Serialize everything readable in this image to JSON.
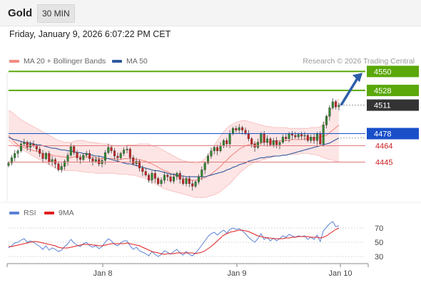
{
  "header": {
    "instrument": "Gold",
    "timeframe": "30 MIN"
  },
  "timestamp": "Friday, January 9, 2026 6:07:22 PM CET",
  "credit": "Research © 2026 Trading Central",
  "legend": {
    "main": [
      {
        "label": "MA 20 + Bollinger Bands",
        "color": "#f28b82"
      },
      {
        "label": "MA 50",
        "color": "#2f5a9e"
      }
    ],
    "rsi": [
      {
        "label": "RSI",
        "color": "#5b82d6"
      },
      {
        "label": "9MA",
        "color": "#e01f1f"
      }
    ]
  },
  "colors": {
    "resistance": "#5aa80a",
    "support": "#cc2222",
    "pivot": "#1a4fc9",
    "price_tag": "#333333",
    "arrow": "#2e5ea8",
    "candle_up": "#2e8b2e",
    "candle_down": "#cc2222",
    "band_fill": "#fde0e0"
  },
  "chart_data": [
    {
      "type": "candlestick",
      "title": "",
      "x_ticks": [
        "Jan 8",
        "Jan 9",
        "Jan 10"
      ],
      "ylim": [
        4400,
        4575
      ],
      "levels": [
        {
          "value": 4550,
          "label": "4550",
          "kind": "resistance"
        },
        {
          "value": 4528,
          "label": "4528",
          "kind": "resistance"
        },
        {
          "value": 4511,
          "label": "4511",
          "kind": "last"
        },
        {
          "value": 4478,
          "label": "4478",
          "kind": "pivot"
        },
        {
          "value": 4464,
          "label": "4464",
          "kind": "support"
        },
        {
          "value": 4445,
          "label": "4445",
          "kind": "support"
        }
      ],
      "close": [
        4444,
        4450,
        4455,
        4458,
        4466,
        4468,
        4462,
        4466,
        4464,
        4460,
        4455,
        4449,
        4455,
        4445,
        4448,
        4443,
        4436,
        4440,
        4446,
        4453,
        4463,
        4456,
        4450,
        4448,
        4453,
        4455,
        4449,
        4446,
        4448,
        4443,
        4447,
        4456,
        4462,
        4458,
        4452,
        4450,
        4455,
        4459,
        4460,
        4450,
        4443,
        4446,
        4438,
        4434,
        4430,
        4424,
        4432,
        4426,
        4420,
        4424,
        4430,
        4428,
        4423,
        4428,
        4432,
        4425,
        4420,
        4426,
        4420,
        4417,
        4422,
        4428,
        4436,
        4444,
        4452,
        4458,
        4462,
        4458,
        4464,
        4470,
        4466,
        4478,
        4484,
        4482,
        4485,
        4482,
        4478,
        4472,
        4466,
        4462,
        4468,
        4478,
        4468,
        4472,
        4465,
        4470,
        4465,
        4468,
        4474,
        4472,
        4478,
        4476,
        4474,
        4477,
        4475,
        4476,
        4470,
        4474,
        4470,
        4478,
        4466,
        4488,
        4498,
        4508,
        4515,
        4509,
        4511
      ],
      "ma20": [
        4476,
        4472,
        4468,
        4465,
        4462,
        4462,
        4460,
        4460,
        4458,
        4458,
        4456,
        4455,
        4454,
        4454,
        4453,
        4452,
        4452,
        4451,
        4451,
        4450,
        4450,
        4451,
        4451,
        4451,
        4451,
        4451,
        4451,
        4451,
        4450,
        4449,
        4449,
        4449,
        4449,
        4449,
        4449,
        4448,
        4448,
        4449,
        4449,
        4449,
        4449,
        4448,
        4448,
        4447,
        4446,
        4444,
        4443,
        4441,
        4439,
        4437,
        4435,
        4434,
        4432,
        4430,
        4429,
        4427,
        4426,
        4425,
        4424,
        4424,
        4424,
        4425,
        4426,
        4427,
        4429,
        4431,
        4434,
        4437,
        4440,
        4444,
        4447,
        4451,
        4454,
        4457,
        4460,
        4462,
        4464,
        4465,
        4466,
        4466,
        4467,
        4467,
        4468,
        4468,
        4468,
        4469,
        4469,
        4470,
        4470,
        4470,
        4470,
        4471,
        4471,
        4471,
        4471,
        4472,
        4472,
        4473,
        4473,
        4473,
        4474,
        4475,
        4476,
        4479,
        4482,
        4485,
        4488
      ],
      "bb_upper": [
        4505,
        4503,
        4500,
        4497,
        4494,
        4492,
        4490,
        4488,
        4486,
        4484,
        4482,
        4480,
        4478,
        4476,
        4474,
        4472,
        4470,
        4469,
        4468,
        4468,
        4468,
        4469,
        4470,
        4470,
        4470,
        4469,
        4468,
        4468,
        4467,
        4467,
        4466,
        4466,
        4466,
        4465,
        4464,
        4464,
        4464,
        4464,
        4465,
        4465,
        4465,
        4465,
        4466,
        4466,
        4466,
        4466,
        4464,
        4463,
        4462,
        4460,
        4458,
        4456,
        4454,
        4452,
        4450,
        4448,
        4447,
        4446,
        4445,
        4444,
        4443,
        4444,
        4446,
        4449,
        4453,
        4458,
        4464,
        4470,
        4475,
        4480,
        4484,
        4487,
        4489,
        4491,
        4492,
        4493,
        4493,
        4492,
        4491,
        4490,
        4489,
        4488,
        4487,
        4486,
        4486,
        4485,
        4485,
        4485,
        4485,
        4485,
        4484,
        4484,
        4484,
        4484,
        4484,
        4484,
        4484,
        4485,
        4485,
        4485,
        4486,
        4489,
        4495,
        4502,
        4510,
        4516,
        4518
      ],
      "bb_lower": [
        4470,
        4467,
        4464,
        4462,
        4460,
        4458,
        4456,
        4454,
        4452,
        4450,
        4448,
        4446,
        4444,
        4442,
        4440,
        4438,
        4437,
        4436,
        4435,
        4435,
        4435,
        4435,
        4435,
        4434,
        4434,
        4433,
        4433,
        4433,
        4432,
        4432,
        4432,
        4432,
        4432,
        4432,
        4432,
        4431,
        4431,
        4431,
        4431,
        4430,
        4430,
        4429,
        4428,
        4427,
        4426,
        4424,
        4422,
        4420,
        4418,
        4416,
        4414,
        4413,
        4412,
        4411,
        4410,
        4409,
        4408,
        4407,
        4406,
        4405,
        4404,
        4404,
        4404,
        4404,
        4405,
        4406,
        4407,
        4409,
        4411,
        4414,
        4417,
        4420,
        4424,
        4428,
        4432,
        4435,
        4438,
        4441,
        4443,
        4445,
        4446,
        4447,
        4448,
        4449,
        4450,
        4451,
        4452,
        4452,
        4453,
        4453,
        4454,
        4454,
        4454,
        4454,
        4455,
        4455,
        4455,
        4454,
        4454,
        4453,
        4452,
        4450,
        4449,
        4448,
        4447,
        4446,
        4446
      ],
      "ma50": [
        4474,
        4472,
        4471,
        4470,
        4469,
        4468,
        4467,
        4467,
        4466,
        4465,
        4465,
        4464,
        4463,
        4462,
        4461,
        4461,
        4460,
        4459,
        4459,
        4458,
        4458,
        4457,
        4456,
        4456,
        4455,
        4455,
        4454,
        4453,
        4452,
        4452,
        4451,
        4450,
        4449,
        4448,
        4447,
        4446,
        4445,
        4444,
        4443,
        4443,
        4442,
        4441,
        4440,
        4439,
        4438,
        4437,
        4436,
        4435,
        4435,
        4434,
        4433,
        4432,
        4431,
        4431,
        4430,
        4429,
        4429,
        4428,
        4428,
        4428,
        4428,
        4428,
        4428,
        4428,
        4429,
        4430,
        4431,
        4432,
        4433,
        4434,
        4436,
        4437,
        4439,
        4440,
        4442,
        4443,
        4444,
        4446,
        4447,
        4448,
        4449,
        4450,
        4450,
        4451,
        4451,
        4452,
        4452,
        4452,
        4453,
        4453,
        4454,
        4455,
        4456,
        4457,
        4458,
        4459,
        4460,
        4461,
        4462,
        4463,
        4464,
        4465,
        4466,
        4467,
        4469,
        4471,
        4473
      ]
    },
    {
      "type": "line",
      "title": "RSI",
      "ylim": [
        20,
        80
      ],
      "y_ticks": [
        70,
        50,
        30
      ],
      "series": [
        {
          "name": "RSI",
          "values": [
            42,
            45,
            49,
            50,
            53,
            55,
            50,
            52,
            50,
            47,
            44,
            40,
            45,
            39,
            42,
            40,
            37,
            39,
            44,
            48,
            54,
            49,
            46,
            44,
            48,
            50,
            45,
            43,
            45,
            41,
            44,
            50,
            55,
            52,
            47,
            45,
            49,
            52,
            52,
            45,
            40,
            43,
            38,
            36,
            34,
            31,
            37,
            33,
            30,
            33,
            38,
            36,
            33,
            37,
            40,
            35,
            32,
            37,
            33,
            31,
            35,
            40,
            46,
            52,
            58,
            62,
            64,
            60,
            64,
            67,
            63,
            68,
            70,
            68,
            69,
            66,
            62,
            57,
            53,
            50,
            55,
            62,
            54,
            57,
            52,
            56,
            52,
            55,
            59,
            57,
            61,
            59,
            57,
            59,
            58,
            59,
            54,
            57,
            54,
            60,
            51,
            66,
            71,
            76,
            79,
            72,
            73
          ]
        },
        {
          "name": "9MA",
          "values": [
            44,
            44,
            45,
            46,
            47,
            48,
            49,
            50,
            51,
            51,
            50,
            49,
            48,
            47,
            46,
            45,
            43,
            42,
            42,
            42,
            43,
            44,
            45,
            46,
            47,
            47,
            47,
            46,
            46,
            45,
            45,
            46,
            47,
            48,
            48,
            48,
            48,
            48,
            49,
            48,
            47,
            46,
            45,
            43,
            41,
            39,
            37,
            36,
            35,
            34,
            33,
            34,
            34,
            34,
            35,
            35,
            35,
            35,
            35,
            35,
            34,
            35,
            36,
            38,
            41,
            44,
            48,
            52,
            56,
            60,
            62,
            64,
            65,
            66,
            67,
            67,
            66,
            65,
            63,
            61,
            59,
            58,
            57,
            56,
            56,
            55,
            55,
            55,
            55,
            56,
            56,
            57,
            57,
            58,
            58,
            58,
            58,
            57,
            57,
            57,
            56,
            57,
            59,
            62,
            65,
            68,
            70
          ]
        }
      ]
    }
  ]
}
